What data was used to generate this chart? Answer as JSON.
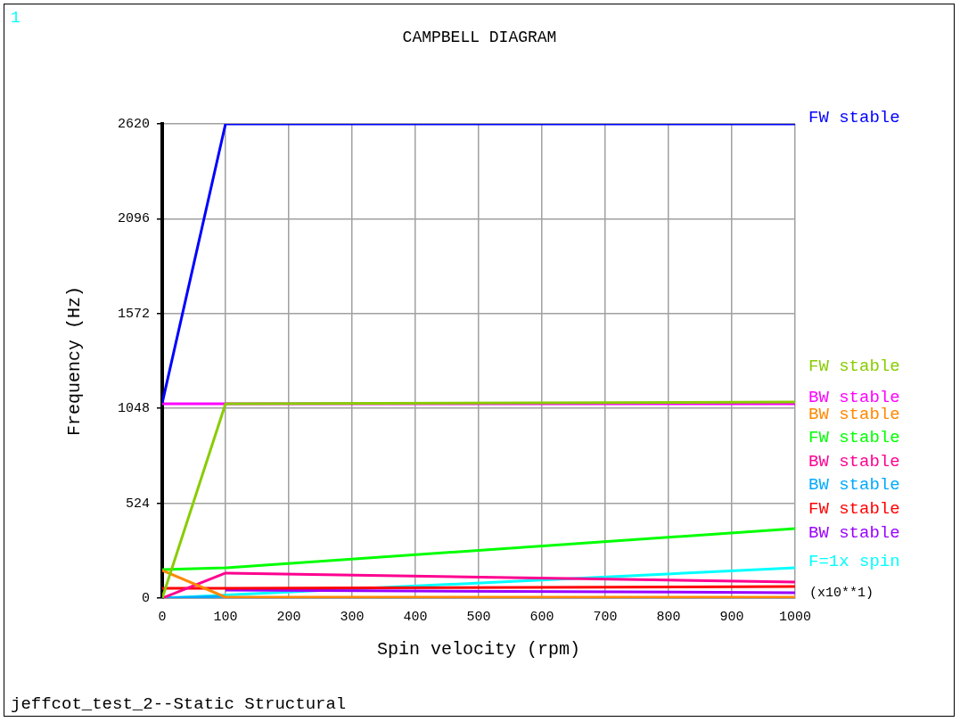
{
  "chart_data": {
    "type": "line",
    "title": "CAMPBELL DIAGRAM",
    "xlabel": "Spin velocity (rpm)",
    "ylabel": "Frequency (Hz)",
    "annotations": [
      "1",
      "(x10**1)",
      "jeffcot_test_2--Static Structural"
    ],
    "x": [
      0,
      100,
      1000
    ],
    "series": [
      {
        "name": "FW stable",
        "color": "#0000ff",
        "values": [
          1078,
          2620,
          2620
        ]
      },
      {
        "name": "FW stable",
        "color": "#88cc00",
        "values": [
          0,
          1074,
          1083
        ]
      },
      {
        "name": "BW stable",
        "color": "#ff00ff",
        "values": [
          1074,
          1074,
          1074
        ]
      },
      {
        "name": "BW stable",
        "color": "#ff8800",
        "values": [
          153,
          5,
          5
        ]
      },
      {
        "name": "FW stable",
        "color": "#00ff00",
        "values": [
          158,
          167,
          384
        ]
      },
      {
        "name": "BW stable",
        "color": "#ff0090",
        "values": [
          0,
          138,
          89
        ]
      },
      {
        "name": "BW stable",
        "color": "#00aaff",
        "values": [
          0,
          10,
          null
        ]
      },
      {
        "name": "FW stable",
        "color": "#ff0000",
        "values": [
          54,
          54,
          64
        ]
      },
      {
        "name": "BW stable",
        "color": "#9900ff",
        "values": [
          null,
          44,
          30
        ]
      },
      {
        "name": "F=1x spin",
        "color": "#00ffff",
        "x": [
          0,
          1000
        ],
        "values": [
          0,
          167
        ]
      }
    ],
    "xlim": [
      0,
      1000
    ],
    "xticks": [
      0,
      100,
      200,
      300,
      400,
      500,
      600,
      700,
      800,
      900,
      1000
    ],
    "ylim": [
      0,
      2620
    ],
    "yticks": [
      0,
      524,
      1048,
      1572,
      2096,
      2620
    ],
    "grid": true,
    "legend": "right",
    "marker": "none",
    "line_style": "solid"
  }
}
